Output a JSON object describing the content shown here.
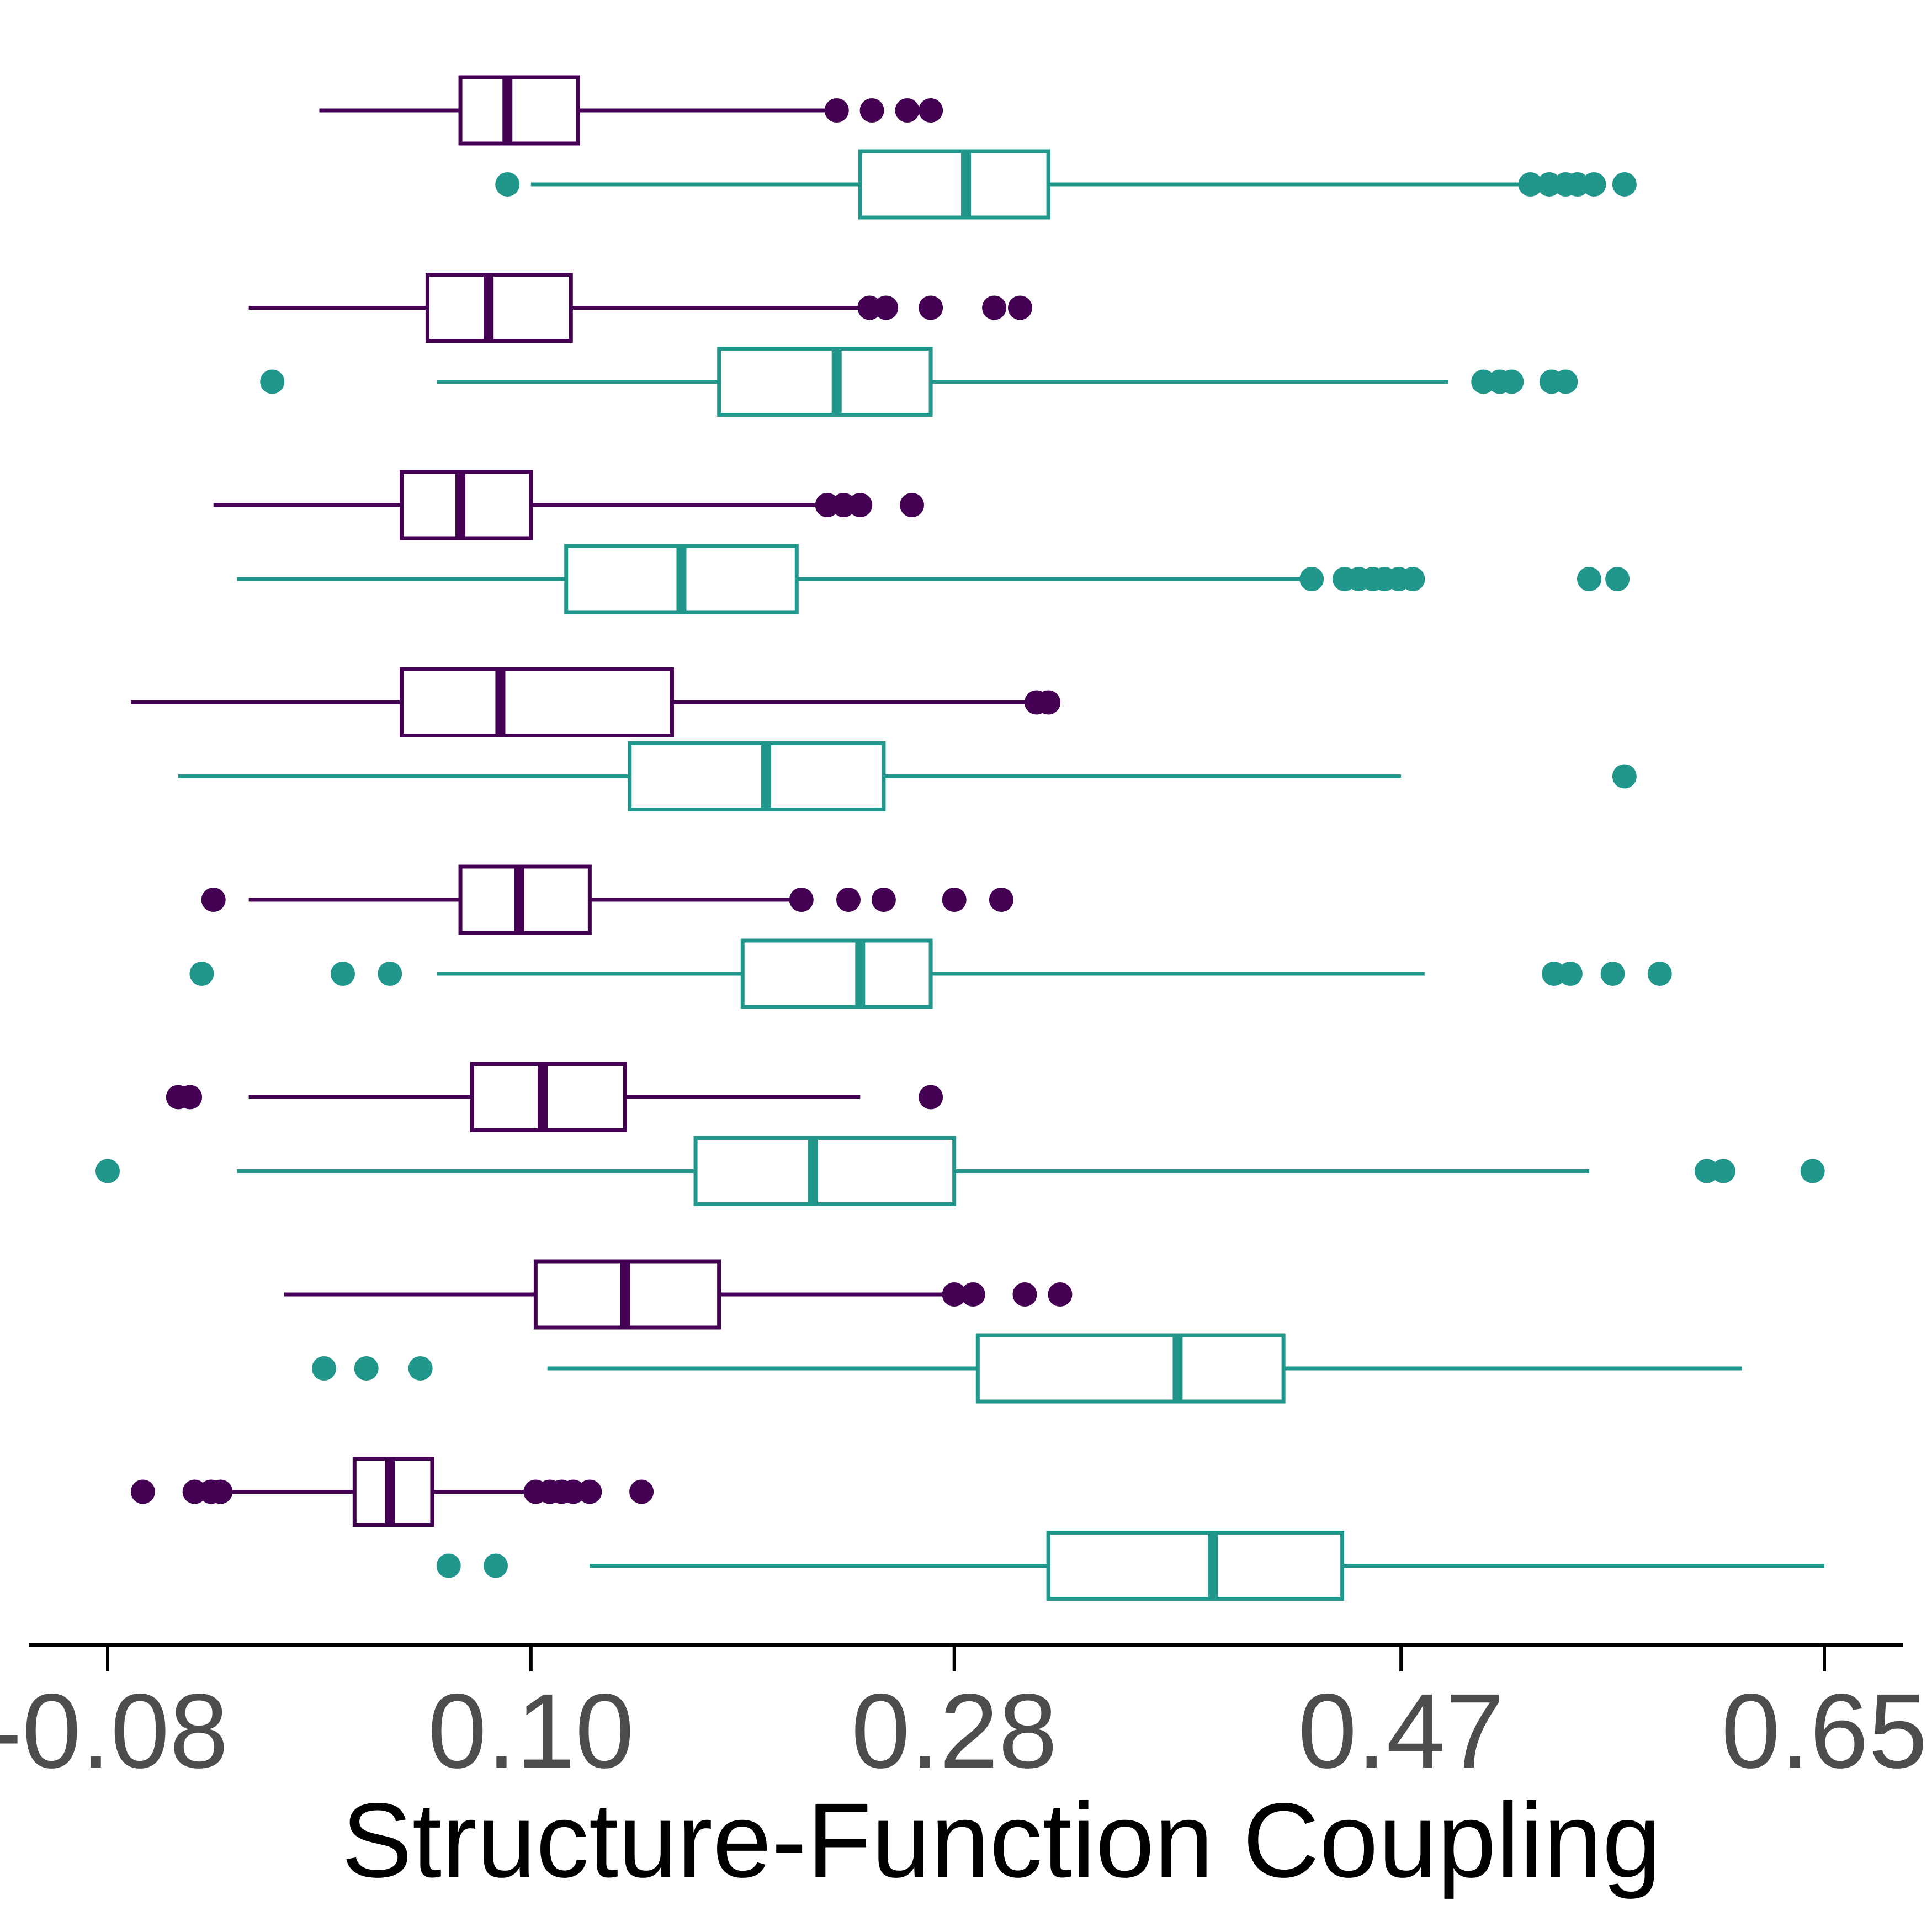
{
  "chart_data": {
    "type": "boxplot",
    "orientation": "horizontal",
    "xlabel": "Structure-Function Coupling",
    "ylabel": "",
    "title": "",
    "xlim": [
      -0.1,
      0.695
    ],
    "xticks": [
      -0.08,
      0.1,
      0.28,
      0.47,
      0.65
    ],
    "xtick_labels": [
      "-0.08",
      "0.10",
      "0.28",
      "0.47",
      "0.65"
    ],
    "grid": false,
    "legend": "none",
    "colors": {
      "series_1": "#440154",
      "series_2": "#21968b",
      "axis": "#000000",
      "tick_label": "#4d4d4d"
    },
    "groups": [
      {
        "boxes": [
          {
            "series": 1,
            "whisker_low": 0.01,
            "q1": 0.07,
            "median": 0.09,
            "q3": 0.12,
            "whisker_high": 0.23,
            "outliers": [
              0.23,
              0.245,
              0.26,
              0.27
            ]
          },
          {
            "series": 2,
            "whisker_low": 0.1,
            "q1": 0.24,
            "median": 0.285,
            "q3": 0.32,
            "whisker_high": 0.52,
            "outliers": [
              0.09,
              0.525,
              0.533,
              0.54,
              0.545,
              0.552,
              0.565
            ]
          }
        ]
      },
      {
        "boxes": [
          {
            "series": 1,
            "whisker_low": -0.02,
            "q1": 0.056,
            "median": 0.082,
            "q3": 0.117,
            "whisker_high": 0.24,
            "outliers": [
              0.244,
              0.251,
              0.27,
              0.297,
              0.308
            ]
          },
          {
            "series": 2,
            "whisker_low": 0.06,
            "q1": 0.18,
            "median": 0.23,
            "q3": 0.27,
            "whisker_high": 0.49,
            "outliers": [
              -0.01,
              0.505,
              0.512,
              0.517,
              0.534,
              0.54
            ]
          }
        ]
      },
      {
        "boxes": [
          {
            "series": 1,
            "whisker_low": -0.035,
            "q1": 0.045,
            "median": 0.07,
            "q3": 0.1,
            "whisker_high": 0.225,
            "outliers": [
              0.226,
              0.233,
              0.24,
              0.262
            ]
          },
          {
            "series": 2,
            "whisker_low": -0.025,
            "q1": 0.115,
            "median": 0.164,
            "q3": 0.213,
            "whisker_high": 0.43,
            "outliers": [
              0.432,
              0.446,
              0.452,
              0.458,
              0.463,
              0.469,
              0.475,
              0.55,
              0.562
            ]
          }
        ]
      },
      {
        "boxes": [
          {
            "series": 1,
            "whisker_low": -0.07,
            "q1": 0.045,
            "median": 0.087,
            "q3": 0.16,
            "whisker_high": 0.31,
            "outliers": [
              0.315,
              0.32
            ]
          },
          {
            "series": 2,
            "whisker_low": -0.05,
            "q1": 0.142,
            "median": 0.2,
            "q3": 0.25,
            "whisker_high": 0.47,
            "outliers": [
              0.565
            ]
          }
        ]
      },
      {
        "boxes": [
          {
            "series": 1,
            "whisker_low": -0.02,
            "q1": 0.07,
            "median": 0.095,
            "q3": 0.125,
            "whisker_high": 0.215,
            "outliers": [
              -0.035,
              0.215,
              0.235,
              0.25,
              0.28,
              0.3
            ]
          },
          {
            "series": 2,
            "whisker_low": 0.06,
            "q1": 0.19,
            "median": 0.24,
            "q3": 0.27,
            "whisker_high": 0.48,
            "outliers": [
              -0.04,
              0.02,
              0.04,
              0.535,
              0.542,
              0.56,
              0.58
            ]
          }
        ]
      },
      {
        "boxes": [
          {
            "series": 1,
            "whisker_low": -0.02,
            "q1": 0.075,
            "median": 0.105,
            "q3": 0.14,
            "whisker_high": 0.24,
            "outliers": [
              -0.05,
              -0.045,
              0.27
            ]
          },
          {
            "series": 2,
            "whisker_low": -0.025,
            "q1": 0.17,
            "median": 0.22,
            "q3": 0.28,
            "whisker_high": 0.55,
            "outliers": [
              -0.08,
              0.6,
              0.607,
              0.645
            ]
          }
        ]
      },
      {
        "boxes": [
          {
            "series": 1,
            "whisker_low": -0.005,
            "q1": 0.102,
            "median": 0.14,
            "q3": 0.18,
            "whisker_high": 0.275,
            "outliers": [
              0.28,
              0.288,
              0.31,
              0.325
            ]
          },
          {
            "series": 2,
            "whisker_low": 0.107,
            "q1": 0.29,
            "median": 0.375,
            "q3": 0.42,
            "whisker_high": 0.615,
            "outliers": [
              0.012,
              0.03,
              0.053
            ]
          }
        ]
      },
      {
        "boxes": [
          {
            "series": 1,
            "whisker_low": -0.035,
            "q1": 0.025,
            "median": 0.04,
            "q3": 0.058,
            "whisker_high": 0.1,
            "outliers": [
              -0.065,
              -0.043,
              -0.036,
              -0.032,
              0.102,
              0.108,
              0.113,
              0.118,
              0.125,
              0.147
            ]
          },
          {
            "series": 2,
            "whisker_low": 0.125,
            "q1": 0.32,
            "median": 0.39,
            "q3": 0.445,
            "whisker_high": 0.65,
            "outliers": [
              0.065,
              0.085
            ]
          }
        ]
      }
    ]
  }
}
